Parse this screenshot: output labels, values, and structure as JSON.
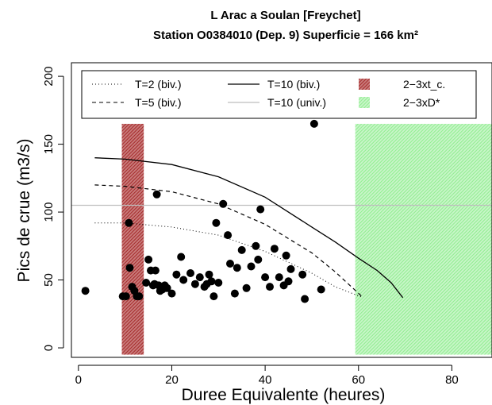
{
  "chart_data": {
    "type": "scatter",
    "title": "L Arac a Soulan [Freychet]",
    "subtitle": "Station O0384010 (Dep. 9) Superficie = 166 km²",
    "xlabel": "Duree Equivalente (heures)",
    "ylabel": "Pics de crue (m3/s)",
    "xlim": [
      -1.5,
      88.6
    ],
    "ylim": [
      -7,
      210
    ],
    "xticks": [
      0,
      20,
      40,
      60,
      80
    ],
    "yticks": [
      0,
      50,
      100,
      150,
      200
    ],
    "grid": false,
    "legend_position": "top",
    "legend": {
      "t2": "T=2 (biv.)",
      "t5": "T=5 (biv.)",
      "t10": "T=10 (biv.)",
      "t10u": "T=10 (univ.)",
      "xt": "2−3xt_c.",
      "xd": "2−3xD*"
    },
    "colors": {
      "xt": "#a52a2a",
      "xd": "#90ee90",
      "univ": "#bebebe",
      "points": "#000000"
    },
    "rect_xt": {
      "x0": 9.3,
      "x1": 14.0,
      "y0": -5,
      "y1": 165
    },
    "rect_xd": {
      "x0": 59.3,
      "x1": 88.6,
      "y0": -5,
      "y1": 165
    },
    "univ_level": 105,
    "t2_curve": [
      [
        3.5,
        92
      ],
      [
        10,
        92
      ],
      [
        20,
        89
      ],
      [
        30,
        83
      ],
      [
        40,
        71
      ],
      [
        50,
        55
      ],
      [
        55,
        45
      ],
      [
        61,
        37
      ]
    ],
    "t5_curve": [
      [
        3.5,
        120
      ],
      [
        10,
        119
      ],
      [
        20,
        115
      ],
      [
        30,
        106
      ],
      [
        40,
        91
      ],
      [
        50,
        70
      ],
      [
        55,
        56
      ],
      [
        61,
        37
      ]
    ],
    "t10_curve": [
      [
        3.5,
        140
      ],
      [
        10,
        139
      ],
      [
        20,
        135
      ],
      [
        30,
        126
      ],
      [
        40,
        111
      ],
      [
        50,
        89
      ],
      [
        55,
        78
      ],
      [
        60,
        66
      ],
      [
        64,
        57
      ],
      [
        67,
        48
      ],
      [
        69.5,
        37
      ]
    ],
    "points": [
      [
        1.5,
        42
      ],
      [
        9.5,
        38
      ],
      [
        10.2,
        38
      ],
      [
        10.8,
        92
      ],
      [
        11,
        59
      ],
      [
        11.5,
        45
      ],
      [
        12,
        42
      ],
      [
        12.5,
        38
      ],
      [
        13,
        38
      ],
      [
        14.5,
        48
      ],
      [
        15,
        65
      ],
      [
        15.5,
        57
      ],
      [
        16,
        46
      ],
      [
        16.3,
        47
      ],
      [
        16.5,
        57
      ],
      [
        16.8,
        113
      ],
      [
        17.2,
        46
      ],
      [
        17.5,
        42
      ],
      [
        18,
        43
      ],
      [
        18.5,
        46
      ],
      [
        19,
        44
      ],
      [
        20,
        40
      ],
      [
        21,
        54
      ],
      [
        22,
        67
      ],
      [
        22.5,
        50
      ],
      [
        24,
        55
      ],
      [
        25,
        47
      ],
      [
        26,
        52
      ],
      [
        27,
        45
      ],
      [
        27.5,
        47
      ],
      [
        28,
        54
      ],
      [
        28.5,
        49
      ],
      [
        29,
        38
      ],
      [
        29.5,
        92
      ],
      [
        30,
        48
      ],
      [
        31,
        106
      ],
      [
        32,
        83
      ],
      [
        32.5,
        62
      ],
      [
        33.5,
        40
      ],
      [
        34,
        59
      ],
      [
        35,
        72
      ],
      [
        36,
        44
      ],
      [
        37,
        60
      ],
      [
        38,
        75
      ],
      [
        38.5,
        65
      ],
      [
        39,
        102
      ],
      [
        40,
        52
      ],
      [
        41,
        45
      ],
      [
        42,
        73
      ],
      [
        43,
        52
      ],
      [
        44,
        46
      ],
      [
        44.5,
        68
      ],
      [
        45,
        49
      ],
      [
        45.5,
        58
      ],
      [
        48,
        54
      ],
      [
        48.5,
        36
      ],
      [
        50.5,
        165
      ],
      [
        52,
        43
      ]
    ]
  }
}
